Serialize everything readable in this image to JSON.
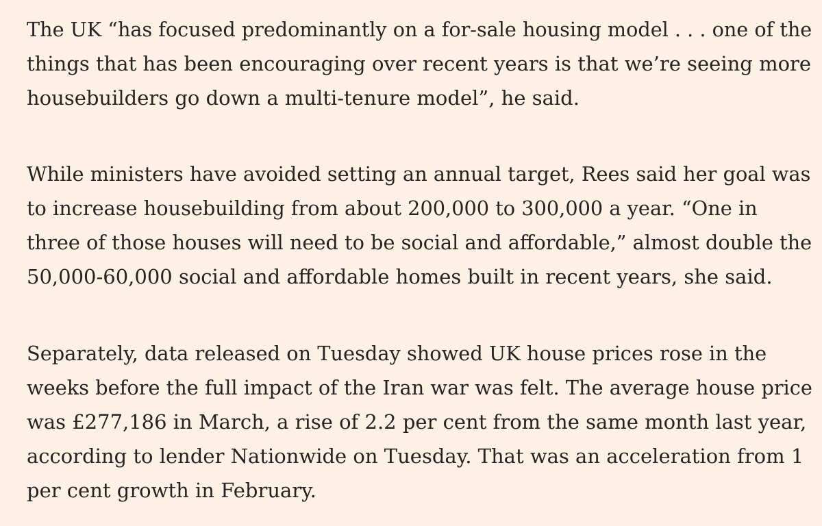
{
  "article": {
    "paragraphs": [
      {
        "lines": [
          "The UK “has focused predominantly on a for-sale housing model . . . one of the",
          "things that has been encouraging over recent years is that we’re seeing more",
          "housebuilders go down a multi-tenure model”, he said."
        ]
      },
      {
        "lines": [
          "While ministers have avoided setting an annual target, Rees said her goal was",
          "to increase housebuilding from about 200,000 to 300,000 a year. “One in",
          "three of those houses will need to be social and affordable,” almost double the",
          "50,000-60,000 social and affordable homes built in recent years, she said."
        ]
      },
      {
        "lines": [
          "Separately, data released on Tuesday showed UK house prices rose in the",
          "weeks before the full impact of the Iran war was felt. The average house price",
          "was £277,186 in March, a rise of 2.2 per cent from the same month last year,",
          "according to lender Nationwide on Tuesday. That was an acceleration from 1",
          "per cent growth in February."
        ]
      }
    ]
  }
}
